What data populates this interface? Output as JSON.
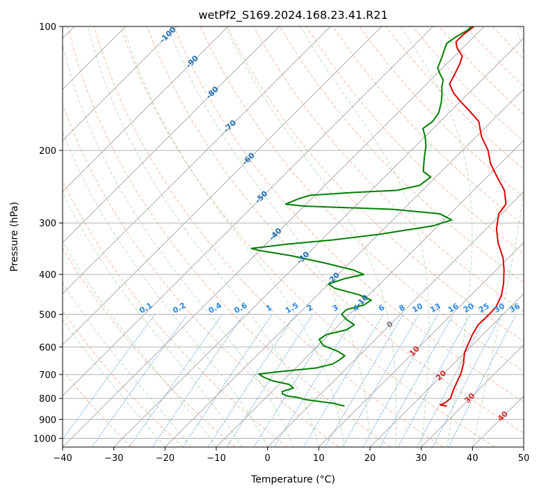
{
  "chart_data": {
    "type": "line",
    "title": "wetPf2_S169.2024.168.23.41.R21",
    "xlabel": "Temperature (°C)",
    "ylabel": "Pressure (hPa)",
    "xlim": [
      -40,
      50
    ],
    "ylim": [
      1050,
      100
    ],
    "y_scale": "log",
    "x_ticks": [
      -40,
      -30,
      -20,
      -10,
      0,
      10,
      20,
      30,
      40,
      50
    ],
    "y_ticks": [
      100,
      200,
      300,
      400,
      500,
      600,
      700,
      800,
      900,
      1000
    ],
    "grid": true,
    "background_lines": {
      "dry_adiabats": "dashed light red",
      "moist_adiabats": "dashed light green",
      "isotherms_skewed": "solid grey",
      "mixing_ratio": "dotted blue"
    },
    "isotherm_labels": [
      {
        "value": "-100",
        "t": -100,
        "p": 105
      },
      {
        "value": "-90",
        "t": -90,
        "p": 122
      },
      {
        "value": "-80",
        "t": -80,
        "p": 145
      },
      {
        "value": "-70",
        "t": -70,
        "p": 175
      },
      {
        "value": "-60",
        "t": -60,
        "p": 210
      },
      {
        "value": "-50",
        "t": -50,
        "p": 260
      },
      {
        "value": "-40",
        "t": -40,
        "p": 320
      },
      {
        "value": "-30",
        "t": -30,
        "p": 365
      },
      {
        "value": "-20",
        "t": -20,
        "p": 410
      },
      {
        "value": "-10",
        "t": -10,
        "p": 465
      },
      {
        "value": "0",
        "t": 0,
        "p": 530
      },
      {
        "value": "10",
        "t": 10,
        "p": 615
      },
      {
        "value": "20",
        "t": 20,
        "p": 705
      },
      {
        "value": "30",
        "t": 30,
        "p": 800
      },
      {
        "value": "40",
        "t": 40,
        "p": 885
      }
    ],
    "mixing_ratio_labels": [
      {
        "value": "0.1",
        "t": -23.5
      },
      {
        "value": "0.2",
        "t": -17
      },
      {
        "value": "0.4",
        "t": -10
      },
      {
        "value": "0.6",
        "t": -5
      },
      {
        "value": "1",
        "t": 0.5
      },
      {
        "value": "1.5",
        "t": 5
      },
      {
        "value": "2",
        "t": 8.5
      },
      {
        "value": "3",
        "t": 13.5
      },
      {
        "value": "4",
        "t": 17.5
      },
      {
        "value": "6",
        "t": 22.5
      },
      {
        "value": "8",
        "t": 26.5
      },
      {
        "value": "10",
        "t": 29.5
      },
      {
        "value": "13",
        "t": 33
      },
      {
        "value": "16",
        "t": 36.5
      },
      {
        "value": "20",
        "t": 39.5
      },
      {
        "value": "25",
        "t": 42.5
      },
      {
        "value": "30",
        "t": 45.5
      },
      {
        "value": "36",
        "t": 48.5
      }
    ],
    "mixing_ratio_label_p": 500,
    "series": [
      {
        "color": "#dd0000",
        "points": [
          {
            "t": 27,
            "p": 835
          },
          {
            "t": 25.5,
            "p": 830
          },
          {
            "t": 26,
            "p": 820
          },
          {
            "t": 26.2,
            "p": 800
          },
          {
            "t": 25,
            "p": 760
          },
          {
            "t": 24,
            "p": 720
          },
          {
            "t": 23.5,
            "p": 700
          },
          {
            "t": 22,
            "p": 660
          },
          {
            "t": 20,
            "p": 620
          },
          {
            "t": 19,
            "p": 590
          },
          {
            "t": 18,
            "p": 560
          },
          {
            "t": 17.2,
            "p": 530
          },
          {
            "t": 17.3,
            "p": 505
          },
          {
            "t": 17.2,
            "p": 480
          },
          {
            "t": 16,
            "p": 450
          },
          {
            "t": 14,
            "p": 420
          },
          {
            "t": 11.5,
            "p": 390
          },
          {
            "t": 9,
            "p": 365
          },
          {
            "t": 5,
            "p": 335
          },
          {
            "t": 2,
            "p": 310
          },
          {
            "t": -0.5,
            "p": 285
          },
          {
            "t": -1,
            "p": 270
          },
          {
            "t": -4,
            "p": 250
          },
          {
            "t": -8.5,
            "p": 230
          },
          {
            "t": -12,
            "p": 215
          },
          {
            "t": -15,
            "p": 200
          },
          {
            "t": -19,
            "p": 185
          },
          {
            "t": -22.5,
            "p": 170
          },
          {
            "t": -26.5,
            "p": 160
          },
          {
            "t": -30,
            "p": 152
          },
          {
            "t": -33,
            "p": 145
          },
          {
            "t": -35.5,
            "p": 138
          },
          {
            "t": -36.5,
            "p": 130
          },
          {
            "t": -37.5,
            "p": 123
          },
          {
            "t": -38.5,
            "p": 118
          },
          {
            "t": -41,
            "p": 113
          },
          {
            "t": -42.5,
            "p": 109
          },
          {
            "t": -42.5,
            "p": 105
          },
          {
            "t": -42,
            "p": 100
          }
        ]
      },
      {
        "color": "#008000",
        "points": [
          {
            "t": 7,
            "p": 835
          },
          {
            "t": 5.5,
            "p": 828
          },
          {
            "t": 4.5,
            "p": 823
          },
          {
            "t": -2,
            "p": 805
          },
          {
            "t": -4,
            "p": 795
          },
          {
            "t": -6,
            "p": 790
          },
          {
            "t": -7.5,
            "p": 780
          },
          {
            "t": -8,
            "p": 770
          },
          {
            "t": -6.5,
            "p": 755
          },
          {
            "t": -8,
            "p": 740
          },
          {
            "t": -12,
            "p": 725
          },
          {
            "t": -14.5,
            "p": 710
          },
          {
            "t": -16,
            "p": 698
          },
          {
            "t": -13,
            "p": 690
          },
          {
            "t": -6,
            "p": 675
          },
          {
            "t": -3.5,
            "p": 660
          },
          {
            "t": -3,
            "p": 645
          },
          {
            "t": -2.8,
            "p": 630
          },
          {
            "t": -5,
            "p": 615
          },
          {
            "t": -9,
            "p": 595
          },
          {
            "t": -11,
            "p": 575
          },
          {
            "t": -10.5,
            "p": 560
          },
          {
            "t": -7.5,
            "p": 545
          },
          {
            "t": -7,
            "p": 530
          },
          {
            "t": -9.5,
            "p": 515
          },
          {
            "t": -11.5,
            "p": 500
          },
          {
            "t": -11.5,
            "p": 487
          },
          {
            "t": -9,
            "p": 475
          },
          {
            "t": -8.5,
            "p": 462
          },
          {
            "t": -12,
            "p": 448
          },
          {
            "t": -18,
            "p": 432
          },
          {
            "t": -20,
            "p": 422
          },
          {
            "t": -18,
            "p": 410
          },
          {
            "t": -15,
            "p": 400
          },
          {
            "t": -18,
            "p": 390
          },
          {
            "t": -25,
            "p": 375
          },
          {
            "t": -33,
            "p": 360
          },
          {
            "t": -40,
            "p": 350
          },
          {
            "t": -42,
            "p": 346
          },
          {
            "t": -36,
            "p": 338
          },
          {
            "t": -28,
            "p": 330
          },
          {
            "t": -20,
            "p": 320
          },
          {
            "t": -11,
            "p": 305
          },
          {
            "t": -8.5,
            "p": 295
          },
          {
            "t": -12,
            "p": 285
          },
          {
            "t": -22,
            "p": 278
          },
          {
            "t": -40,
            "p": 273
          },
          {
            "t": -44,
            "p": 270
          },
          {
            "t": -42.5,
            "p": 262
          },
          {
            "t": -41,
            "p": 257
          },
          {
            "t": -33,
            "p": 253
          },
          {
            "t": -25,
            "p": 250
          },
          {
            "t": -21.5,
            "p": 243
          },
          {
            "t": -21,
            "p": 232
          },
          {
            "t": -23.5,
            "p": 225
          },
          {
            "t": -25,
            "p": 215
          },
          {
            "t": -26.5,
            "p": 205
          },
          {
            "t": -28,
            "p": 195
          },
          {
            "t": -30,
            "p": 185
          },
          {
            "t": -32,
            "p": 177
          },
          {
            "t": -31.5,
            "p": 170
          },
          {
            "t": -32,
            "p": 162
          },
          {
            "t": -33.5,
            "p": 153
          },
          {
            "t": -35,
            "p": 146
          },
          {
            "t": -36.5,
            "p": 140
          },
          {
            "t": -37.5,
            "p": 135
          },
          {
            "t": -39.5,
            "p": 130
          },
          {
            "t": -41,
            "p": 126
          },
          {
            "t": -42,
            "p": 120
          },
          {
            "t": -43,
            "p": 115
          },
          {
            "t": -44,
            "p": 110
          },
          {
            "t": -43.5,
            "p": 106
          },
          {
            "t": -42.5,
            "p": 102
          },
          {
            "t": -42.5,
            "p": 100
          }
        ]
      }
    ]
  }
}
